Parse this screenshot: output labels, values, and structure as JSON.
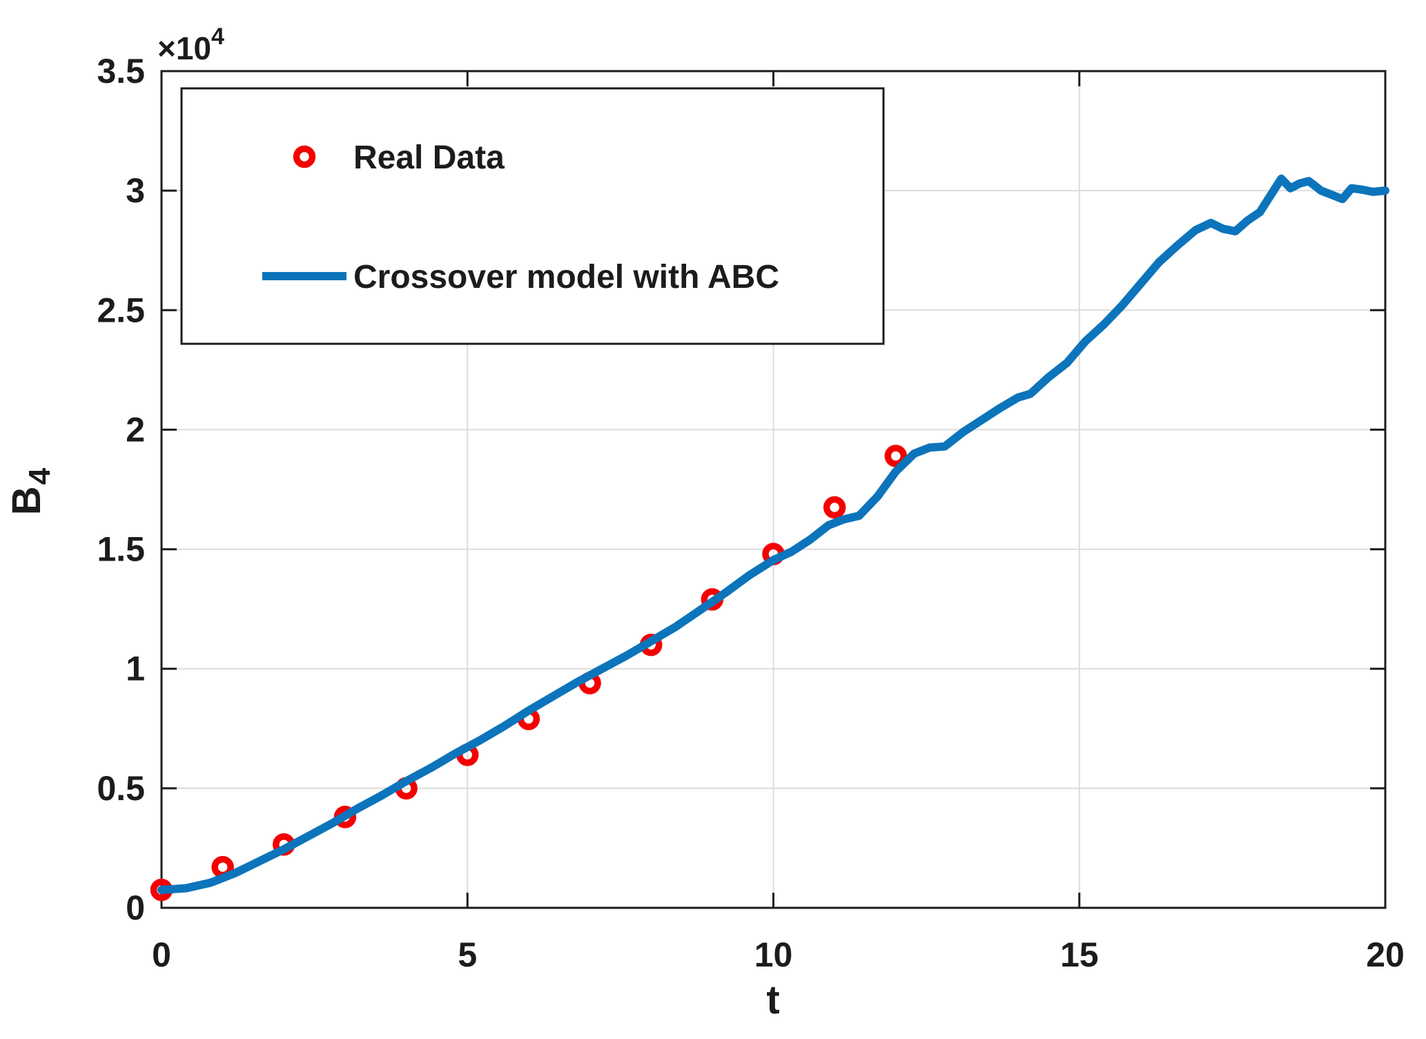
{
  "figure": {
    "background": "#ffffff",
    "axis_color": "#1c1c1c",
    "grid_color": "#dcdcdc",
    "xlabel": "t",
    "ylabel": {
      "base": "B",
      "sub": "4"
    },
    "y_exponent": {
      "base": "×10",
      "sup": "4"
    }
  },
  "legend": {
    "entries": [
      {
        "label": "Real Data",
        "marker": "circle",
        "color": "#f40000"
      },
      {
        "label": "Crossover model with ABC",
        "marker": "line",
        "color": "#0c74bb"
      }
    ]
  },
  "chart_data": {
    "type": "line",
    "title": "",
    "xlabel": "t",
    "ylabel": "B_4",
    "xlim": [
      0,
      20
    ],
    "ylim": [
      0,
      35000
    ],
    "xticks": [
      0,
      5,
      10,
      15,
      20
    ],
    "xtick_labels": [
      "0",
      "5",
      "10",
      "15",
      "20"
    ],
    "yticks": [
      0,
      5000,
      10000,
      15000,
      20000,
      25000,
      30000,
      35000
    ],
    "ytick_labels": [
      "0",
      "0.5",
      "1",
      "1.5",
      "2",
      "2.5",
      "3",
      "3.5"
    ],
    "y_exponent_text": "×10^4",
    "grid": true,
    "legend_position": "upper-left",
    "series": [
      {
        "name": "Real Data",
        "type": "scatter",
        "color": "#f40000",
        "x": [
          0,
          1,
          2,
          3,
          4,
          5,
          6,
          7,
          8,
          9,
          10,
          11,
          12
        ],
        "y": [
          750,
          1700,
          2650,
          3800,
          5000,
          6400,
          7900,
          9400,
          11000,
          12900,
          14800,
          16750,
          18900
        ]
      },
      {
        "name": "Crossover model with ABC",
        "type": "line",
        "color": "#0c74bb",
        "x": [
          0,
          0.4,
          0.8,
          1.2,
          1.6,
          2,
          2.4,
          2.8,
          3.2,
          3.6,
          4,
          4.4,
          4.8,
          5.2,
          5.6,
          6,
          6.4,
          6.8,
          7.2,
          7.6,
          8,
          8.4,
          8.8,
          9.2,
          9.6,
          10,
          10.3,
          10.6,
          10.9,
          11.15,
          11.4,
          11.7,
          12,
          12.3,
          12.55,
          12.8,
          13.1,
          13.4,
          13.7,
          14,
          14.2,
          14.5,
          14.8,
          15.1,
          15.4,
          15.7,
          16,
          16.3,
          16.6,
          16.9,
          17.15,
          17.35,
          17.55,
          17.75,
          17.95,
          18.15,
          18.3,
          18.45,
          18.6,
          18.75,
          18.95,
          19.1,
          19.3,
          19.45,
          19.6,
          19.8,
          20
        ],
        "y": [
          750,
          820,
          1050,
          1450,
          1950,
          2450,
          3000,
          3550,
          4150,
          4700,
          5300,
          5850,
          6450,
          7000,
          7600,
          8250,
          8850,
          9450,
          10000,
          10550,
          11150,
          11750,
          12450,
          13150,
          13900,
          14550,
          14900,
          15400,
          16000,
          16250,
          16400,
          17200,
          18250,
          19000,
          19250,
          19300,
          19900,
          20400,
          20900,
          21350,
          21500,
          22200,
          22800,
          23700,
          24400,
          25200,
          26100,
          27000,
          27700,
          28350,
          28650,
          28400,
          28300,
          28750,
          29100,
          29900,
          30500,
          30100,
          30300,
          30400,
          30000,
          29850,
          29650,
          30100,
          30050,
          29950,
          30000
        ]
      }
    ]
  }
}
